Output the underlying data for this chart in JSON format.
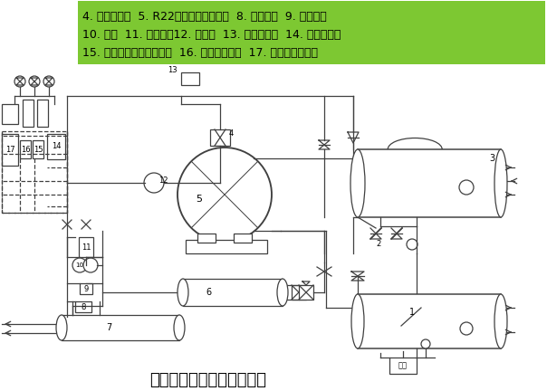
{
  "background_color": "#ffffff",
  "header_bg_color": "#7dc832",
  "header_text_color": "#000000",
  "header_lines": [
    "4. 吸气过滤器  5. R22螺杆式制冷压缩机  8. 油粗滤器  9. 油调节阀",
    "10. 油泵  11. 油精滤器12. 四通阀  13. 四通电磁阀  14. 油温控制器",
    "15. 精滤器前后压差控制器  16. 油压差控制器  17. 高低压力控制器"
  ],
  "header_fontsize": 9.0,
  "title": "螺杆式冷水机组工作示意图",
  "title_fontsize": 13,
  "title_color": "#000000",
  "fig_width": 6.04,
  "fig_height": 4.32,
  "dpi": 100,
  "schematic_color": "#404040",
  "line_width": 0.9
}
